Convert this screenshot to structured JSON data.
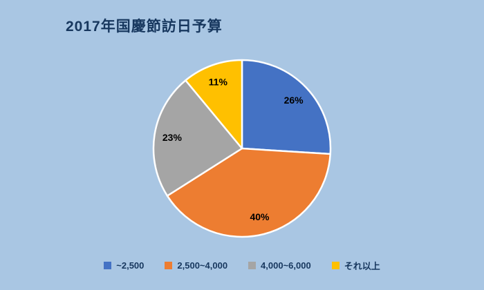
{
  "background_color": "#a9c6e3",
  "chart_data": {
    "type": "pie",
    "title": "2017年国慶節訪日予算",
    "categories": [
      "~2,500",
      "2,500~4,000",
      "4,000~6,000",
      "それ以上"
    ],
    "values": [
      26,
      40,
      23,
      11
    ],
    "data_labels": [
      "26%",
      "40%",
      "23%",
      "11%"
    ],
    "colors": [
      "#4472c4",
      "#ed7d31",
      "#a5a5a5",
      "#ffc000"
    ],
    "slice_border_color": "#ffffff",
    "label_color": "#000000",
    "title_color": "#17375e",
    "legend_text_color": "#17375e",
    "legend_position": "bottom",
    "start_angle": 0,
    "direction": "clockwise"
  }
}
